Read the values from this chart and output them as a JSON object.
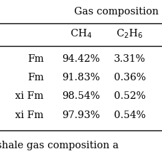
{
  "title": "Gas composition",
  "col_headers": [
    "CH₄",
    "C₂H₆"
  ],
  "rows": [
    [
      "Fm",
      "94.42%",
      "3.31%"
    ],
    [
      "Fm",
      "91.83%",
      "0.36%"
    ],
    [
      "xi Fm",
      "98.54%",
      "0.52%"
    ],
    [
      "xi Fm",
      "97.93%",
      "0.54%"
    ]
  ],
  "footer": "shale gas composition a",
  "bg_color": "white",
  "text_color": "black",
  "line_color": "black",
  "font_size": 10.5
}
